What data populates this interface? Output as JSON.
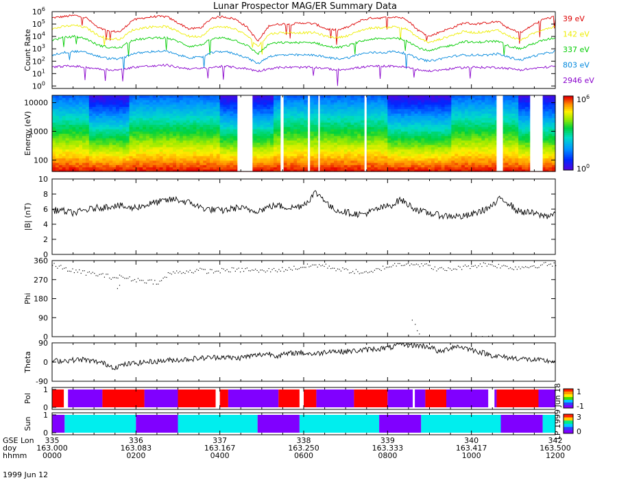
{
  "chart_data": {
    "type": "line",
    "title": "Lunar Prospector MAG/ER Summary Data",
    "date_label": "1999 Jun 12",
    "side_stamp": "LP 1999 Jun 18",
    "x_axis": {
      "row_labels": [
        "GSE Lon",
        "doy",
        "hhmm"
      ],
      "gse_lon": [
        "335",
        "336",
        "337",
        "338",
        "339",
        "340",
        "342"
      ],
      "doy": [
        "163.000",
        "163.083",
        "163.167",
        "163.250",
        "163.333",
        "163.417",
        "163.500"
      ],
      "hhmm": [
        "0000",
        "0200",
        "0400",
        "0600",
        "0800",
        "1000",
        "1200"
      ],
      "hours_range": [
        0,
        12
      ]
    },
    "panels": {
      "count_rate": {
        "ylabel": "Count Rate",
        "scale": "log",
        "ylim_exp": [
          -0.2,
          6
        ],
        "tick_exponents": [
          0,
          1,
          2,
          3,
          4,
          5,
          6
        ],
        "series": [
          {
            "name": "39 eV",
            "color": "#dd0000",
            "levels_log10": [
              5.5,
              5.6,
              5.7,
              5.5,
              4.7,
              4.4,
              4.4,
              5.3,
              5.5,
              5.6,
              5.6,
              5.1,
              4.6,
              4.7,
              5.5,
              5.6,
              5.4,
              4.8,
              3.6,
              4.9,
              5.0,
              5.0,
              5.1,
              5.0,
              4.6,
              4.5,
              4.8,
              5.3,
              5.5,
              5.5,
              5.6,
              5.4,
              4.5,
              4.0,
              4.4,
              4.7,
              5.1,
              5.0,
              5.1,
              5.2,
              4.6,
              4.3,
              4.9,
              5.4,
              5.6
            ]
          },
          {
            "name": "142 eV",
            "color": "#eeee00",
            "levels_log10": [
              4.6,
              4.8,
              4.9,
              4.7,
              4.1,
              3.8,
              3.8,
              4.5,
              4.7,
              4.8,
              4.8,
              4.4,
              4.0,
              4.0,
              4.7,
              4.8,
              4.6,
              4.1,
              3.2,
              4.2,
              4.3,
              4.3,
              4.3,
              4.3,
              4.0,
              3.9,
              4.1,
              4.5,
              4.7,
              4.7,
              4.8,
              4.6,
              3.9,
              3.5,
              3.8,
              4.1,
              4.4,
              4.3,
              4.4,
              4.5,
              4.0,
              3.7,
              4.2,
              4.6,
              4.8
            ]
          },
          {
            "name": "337 eV",
            "color": "#00cc00",
            "levels_log10": [
              3.7,
              3.9,
              4.0,
              3.8,
              3.3,
              3.1,
              3.1,
              3.7,
              3.8,
              3.9,
              3.9,
              3.6,
              3.2,
              3.3,
              3.8,
              3.9,
              3.7,
              3.3,
              2.6,
              3.4,
              3.5,
              3.5,
              3.5,
              3.5,
              3.2,
              3.1,
              3.3,
              3.6,
              3.8,
              3.8,
              3.9,
              3.7,
              3.1,
              2.8,
              3.1,
              3.3,
              3.6,
              3.5,
              3.6,
              3.6,
              3.2,
              3.0,
              3.4,
              3.7,
              3.9
            ]
          },
          {
            "name": "803 eV",
            "color": "#0088dd",
            "levels_log10": [
              2.5,
              2.7,
              2.8,
              2.7,
              2.4,
              2.2,
              2.2,
              2.6,
              2.7,
              2.8,
              2.8,
              2.5,
              2.3,
              2.3,
              2.7,
              2.8,
              2.6,
              2.3,
              1.8,
              2.4,
              2.5,
              2.5,
              2.5,
              2.5,
              2.3,
              2.2,
              2.3,
              2.6,
              2.7,
              2.7,
              2.8,
              2.6,
              2.2,
              2.0,
              2.2,
              2.4,
              2.5,
              2.5,
              2.5,
              2.6,
              2.3,
              2.1,
              2.4,
              2.6,
              2.8
            ]
          },
          {
            "name": "2946 eV",
            "color": "#8800cc",
            "levels_log10": [
              1.5,
              1.6,
              1.6,
              1.5,
              1.4,
              1.3,
              1.3,
              1.5,
              1.6,
              1.6,
              1.7,
              1.5,
              1.4,
              1.4,
              1.5,
              1.6,
              1.5,
              1.4,
              1.2,
              1.4,
              1.5,
              1.5,
              1.5,
              1.5,
              1.4,
              1.3,
              1.4,
              1.5,
              1.6,
              1.6,
              1.6,
              1.5,
              1.3,
              1.2,
              1.3,
              1.4,
              1.5,
              1.5,
              1.5,
              1.5,
              1.4,
              1.3,
              1.4,
              1.5,
              1.6
            ]
          }
        ]
      },
      "energy": {
        "ylabel": "Energy (eV)",
        "scale": "log",
        "ylim": [
          40,
          18000
        ],
        "tick_labels": [
          "100",
          "1000",
          "10000"
        ],
        "tick_values": [
          100,
          1000,
          10000
        ],
        "colorbar": {
          "min_label": "10",
          "min_exp": "0",
          "max_label": "10",
          "max_exp": "6",
          "scale": "log"
        },
        "hot_intervals_hours": [
          [
            0.9,
            1.8
          ],
          [
            4.0,
            5.3
          ],
          [
            8.0,
            9.5
          ],
          [
            11.1,
            12.0
          ]
        ],
        "gap_hours": [
          4.42,
          4.78,
          5.45,
          5.52,
          6.1,
          6.15,
          6.35,
          6.38,
          7.45,
          7.5,
          10.6,
          10.75,
          11.4,
          11.7
        ]
      },
      "field_magnitude": {
        "ylabel": "|B| (nT)",
        "ylim": [
          0,
          10
        ],
        "tick_labels": [
          "0",
          "2",
          "4",
          "6",
          "8",
          "10"
        ],
        "tick_values": [
          0,
          2,
          4,
          6,
          8,
          10
        ],
        "series": [
          {
            "name": "|B|",
            "color": "#000000",
            "values": [
              5.8,
              5.9,
              5.6,
              5.5,
              5.8,
              6.0,
              6.2,
              6.3,
              6.5,
              6.4,
              6.1,
              6.3,
              6.5,
              6.8,
              7.0,
              7.2,
              7.3,
              7.0,
              6.8,
              6.3,
              6.0,
              5.9,
              5.8,
              6.0,
              6.2,
              6.0,
              5.8,
              5.9,
              6.3,
              6.5,
              6.3,
              6.2,
              6.4,
              7.0,
              8.2,
              7.5,
              6.2,
              5.8,
              5.6,
              5.4,
              5.3,
              5.6,
              6.0,
              6.3,
              6.6,
              7.3,
              6.6,
              6.0,
              5.6,
              5.4,
              5.2,
              5.1,
              5.1,
              5.0,
              5.2,
              5.6,
              6.0,
              6.5,
              7.5,
              6.8,
              5.8,
              5.6,
              5.5,
              5.2,
              5.1,
              5.5
            ]
          }
        ]
      },
      "phi": {
        "ylabel": "Phi",
        "ylim": [
          0,
          360
        ],
        "tick_labels": [
          "0",
          "90",
          "180",
          "270",
          "360"
        ],
        "tick_values": [
          0,
          90,
          180,
          270,
          360
        ],
        "series": [
          {
            "name": "Phi",
            "color": "#000000",
            "values": [
              340,
              330,
              320,
              310,
              305,
              300,
              295,
              288,
              282,
              285,
              275,
              270,
              266,
              262,
              260,
              300,
              305,
              310,
              312,
              315,
              312,
              310,
              315,
              318,
              316,
              320,
              315,
              310,
              316,
              318,
              320,
              325,
              330,
              335,
              340,
              338,
              330,
              320,
              315,
              310,
              305,
              300,
              320,
              330,
              340,
              345,
              350,
              345,
              340,
              330,
              320,
              318,
              325,
              330,
              335,
              340,
              345,
              340,
              335,
              330,
              328,
              332,
              336,
              340,
              345,
              340
            ]
          }
        ],
        "outliers": [
          [
            8.65,
            60
          ],
          [
            8.7,
            30
          ],
          [
            8.75,
            15
          ],
          [
            8.58,
            80
          ],
          [
            10.1,
            5
          ],
          [
            10.25,
            3
          ],
          [
            10.4,
            4
          ],
          [
            1.55,
            230
          ],
          [
            1.6,
            245
          ]
        ]
      },
      "theta": {
        "ylabel": "Theta",
        "ylim": [
          -90,
          90
        ],
        "tick_labels": [
          "90",
          "0",
          "-90"
        ],
        "tick_values": [
          90,
          0,
          -90
        ],
        "series": [
          {
            "name": "Theta",
            "color": "#000000",
            "values": [
              5,
              6,
              8,
              10,
              12,
              5,
              0,
              -10,
              -25,
              -15,
              -8,
              -5,
              0,
              2,
              5,
              8,
              10,
              12,
              15,
              18,
              20,
              22,
              25,
              20,
              18,
              25,
              30,
              35,
              40,
              30,
              35,
              42,
              45,
              40,
              38,
              45,
              55,
              48,
              50,
              52,
              55,
              60,
              62,
              65,
              70,
              85,
              80,
              78,
              75,
              70,
              45,
              60,
              75,
              70,
              60,
              50,
              40,
              30,
              25,
              20,
              18,
              15,
              10,
              8,
              5,
              3
            ]
          }
        ]
      },
      "polarity": {
        "ylabel": "Pol",
        "tick_labels": [
          "0",
          "1"
        ],
        "colorbar_labels": [
          "1",
          "-1"
        ],
        "segments": [
          {
            "start": 0.0,
            "end": 0.28,
            "value": "toward"
          },
          {
            "start": 0.28,
            "end": 0.38,
            "value": "gap"
          },
          {
            "start": 0.38,
            "end": 1.2,
            "value": "away"
          },
          {
            "start": 1.2,
            "end": 2.2,
            "value": "toward"
          },
          {
            "start": 2.2,
            "end": 3.0,
            "value": "away"
          },
          {
            "start": 3.0,
            "end": 4.2,
            "value": "toward"
          },
          {
            "start": 4.2,
            "end": 5.4,
            "value": "away"
          },
          {
            "start": 5.4,
            "end": 6.3,
            "value": "toward"
          },
          {
            "start": 6.3,
            "end": 7.2,
            "value": "away"
          },
          {
            "start": 7.2,
            "end": 8.0,
            "value": "toward"
          },
          {
            "start": 8.0,
            "end": 8.9,
            "value": "away"
          },
          {
            "start": 8.9,
            "end": 9.4,
            "value": "toward"
          },
          {
            "start": 9.4,
            "end": 10.6,
            "value": "away"
          },
          {
            "start": 10.6,
            "end": 11.6,
            "value": "toward"
          },
          {
            "start": 11.6,
            "end": 12.0,
            "value": "away"
          }
        ],
        "gap_hours": [
          3.9,
          4.0,
          5.9,
          6.0,
          8.6,
          8.65,
          10.4,
          10.55
        ]
      },
      "sun": {
        "ylabel": "Sun",
        "tick_labels": [
          "0",
          "1"
        ],
        "colorbar_labels": [
          "3",
          "0"
        ],
        "segments": [
          {
            "start": 0.0,
            "end": 0.3,
            "value": "shadow"
          },
          {
            "start": 0.3,
            "end": 2.0,
            "value": "sunlit"
          },
          {
            "start": 2.0,
            "end": 3.0,
            "value": "shadow"
          },
          {
            "start": 3.0,
            "end": 4.9,
            "value": "sunlit"
          },
          {
            "start": 4.9,
            "end": 5.9,
            "value": "shadow"
          },
          {
            "start": 5.9,
            "end": 7.8,
            "value": "sunlit"
          },
          {
            "start": 7.8,
            "end": 8.8,
            "value": "shadow"
          },
          {
            "start": 8.8,
            "end": 10.7,
            "value": "sunlit"
          },
          {
            "start": 10.7,
            "end": 11.7,
            "value": "shadow"
          },
          {
            "start": 11.7,
            "end": 12.0,
            "value": "sunlit"
          }
        ]
      }
    }
  }
}
